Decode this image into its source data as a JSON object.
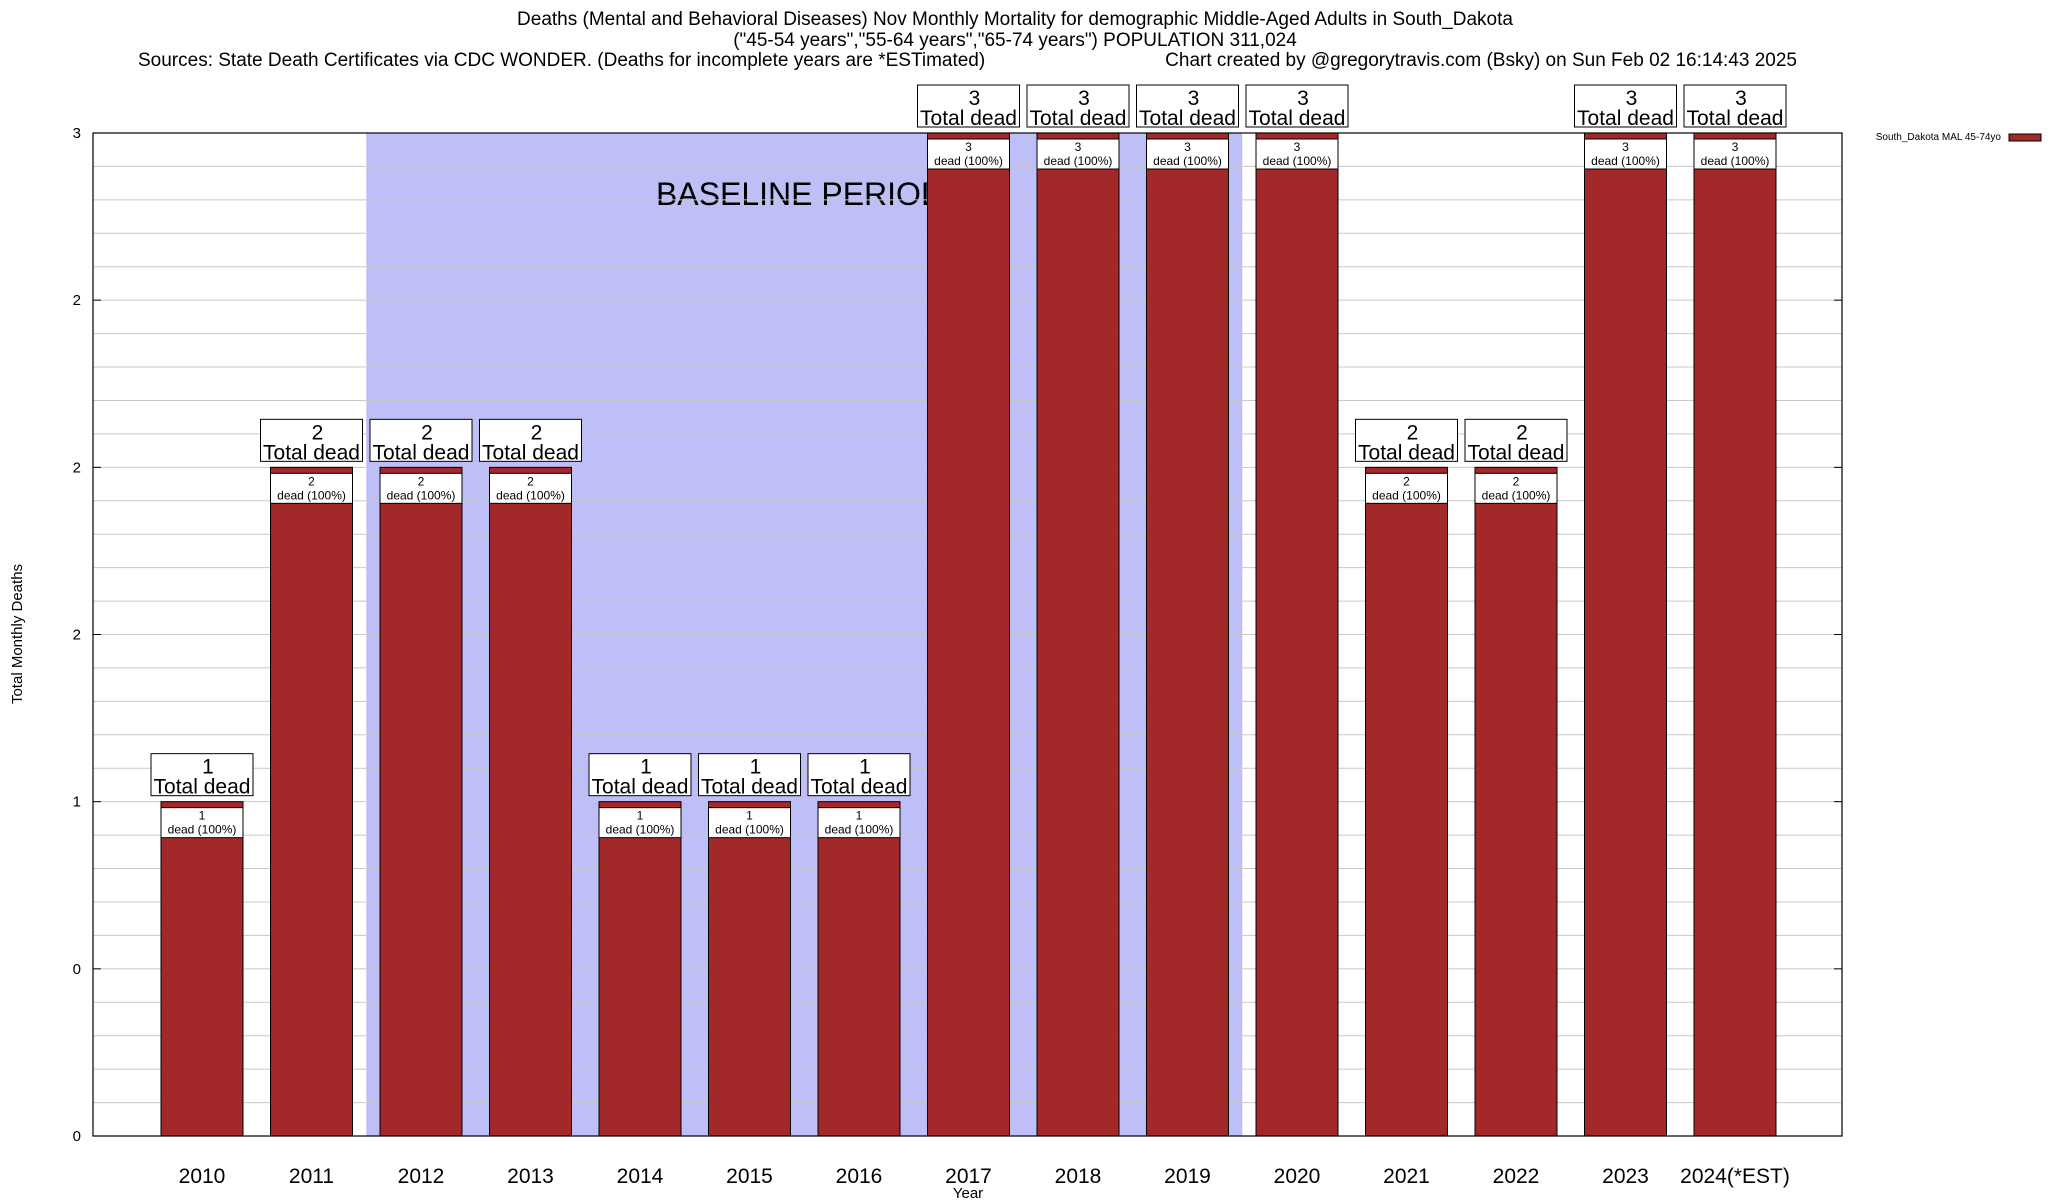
{
  "chart_data": {
    "type": "bar",
    "title": "Deaths (Mental and Behavioral Diseases) Nov Monthly Mortality for demographic Middle-Aged Adults in South_Dakota",
    "subtitle": "(\"45-54 years\",\"55-64 years\",\"65-74 years\") POPULATION 311,024",
    "sources": "Sources: State Death Certificates via CDC WONDER. (Deaths for incomplete years are *ESTimated)",
    "credit": "Chart created by @gregorytravis.com (Bsky) on Sun Feb 02 16:14:43 2025",
    "xlabel": "Year",
    "ylabel": "Total Monthly Deaths",
    "ylim": [
      0,
      3
    ],
    "y_tick_values": [
      0,
      0.5,
      1,
      1.5,
      2,
      2.5,
      3
    ],
    "y_tick_labels": [
      "0",
      "0",
      "1",
      "2",
      "2",
      "2",
      "3"
    ],
    "grid": true,
    "categories": [
      "2010",
      "2011",
      "2012",
      "2013",
      "2014",
      "2015",
      "2016",
      "2017",
      "2018",
      "2019",
      "2020",
      "2021",
      "2022",
      "2023",
      "2024(*EST)"
    ],
    "series": [
      {
        "name": "South_Dakota MAL 45-74yo",
        "color": "#a3282a",
        "values": [
          1,
          2,
          2,
          2,
          1,
          1,
          1,
          3,
          3,
          3,
          3,
          2,
          2,
          3,
          3
        ]
      }
    ],
    "total_labels": [
      "1",
      "2",
      "2",
      "2",
      "1",
      "1",
      "1",
      "3",
      "3",
      "3",
      "3",
      "2",
      "2",
      "3",
      "3"
    ],
    "total_suffix": "Total dead",
    "inner_labels": [
      "1",
      "2",
      "2",
      "2",
      "1",
      "1",
      "1",
      "3",
      "3",
      "3",
      "3",
      "2",
      "2",
      "3",
      "3"
    ],
    "inner_suffix": "dead (100%)",
    "baseline": {
      "label": "BASELINE PERIOD",
      "start_category_index": 1.5,
      "end_category_index": 9.5,
      "color": "#bfbff8"
    },
    "legend_position": "top-right"
  }
}
